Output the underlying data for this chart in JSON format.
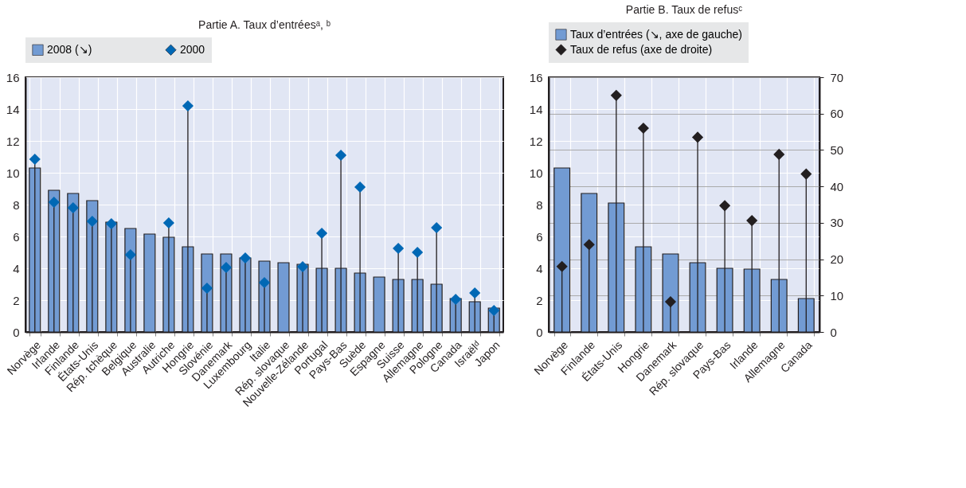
{
  "chart_data": [
    {
      "type": "bar",
      "title": "Partie A. Taux d’entréesᵃ, ᵇ",
      "legend": "top",
      "grid": true,
      "marker": "diamond",
      "categories": [
        "Norvège",
        "Irlande",
        "Finlande",
        "États-Unis",
        "Rép. tchèque",
        "Belgique",
        "Australie",
        "Autriche",
        "Hongrie",
        "Slovénie",
        "Danemark",
        "Luxembourg",
        "Italie",
        "Rép. slovaque",
        "Nouvelle-Zélande",
        "Portugal",
        "Pays-Bas",
        "Suède",
        "Espagne",
        "Suisse",
        "Allemagne",
        "Pologne",
        "Canada",
        "Israëlᵈ",
        "Japon"
      ],
      "ylim": [
        0,
        16
      ],
      "yticks": [
        0,
        2,
        4,
        6,
        8,
        10,
        12,
        14,
        16
      ],
      "series": [
        {
          "name": "2008 (↘)",
          "color": "#729bd3",
          "values": [
            10.3,
            8.9,
            8.7,
            8.25,
            6.9,
            6.5,
            6.15,
            5.95,
            5.35,
            4.9,
            4.9,
            4.65,
            4.45,
            4.35,
            4.25,
            4.0,
            4.0,
            3.7,
            3.45,
            3.3,
            3.3,
            3.0,
            2.1,
            1.9,
            1.5
          ]
        },
        {
          "name": "2000",
          "type": "lollipop",
          "color": "#0068b5",
          "values": [
            10.85,
            8.15,
            7.8,
            6.95,
            6.8,
            4.85,
            null,
            6.85,
            14.2,
            2.75,
            4.05,
            4.65,
            3.1,
            null,
            4.1,
            6.2,
            11.1,
            9.1,
            null,
            5.25,
            5.0,
            6.55,
            2.05,
            2.45,
            1.35
          ]
        }
      ]
    },
    {
      "type": "bar",
      "title": "Partie B. Taux de refusᶜ",
      "legend": "top",
      "grid": true,
      "marker": "diamond",
      "categories": [
        "Norvège",
        "Finlande",
        "États-Unis",
        "Hongrie",
        "Danemark",
        "Rép. slovaque",
        "Pays-Bas",
        "Irlande",
        "Allemagne",
        "Canada"
      ],
      "ylim": [
        0,
        16
      ],
      "yticks": [
        0,
        2,
        4,
        6,
        8,
        10,
        12,
        14,
        16
      ],
      "y2lim": [
        0,
        70
      ],
      "y2ticks": [
        0,
        10,
        20,
        30,
        40,
        50,
        60,
        70
      ],
      "series": [
        {
          "name": "Taux d’entrées (↘, axe de gauche)",
          "color": "#729bd3",
          "values": [
            10.3,
            8.7,
            8.1,
            5.35,
            4.9,
            4.35,
            4.0,
            3.95,
            3.3,
            2.1
          ]
        },
        {
          "name": "Taux de refus (axe de droite)",
          "type": "lollipop",
          "axis": "y2",
          "color": "#231f20",
          "values": [
            18,
            24,
            65,
            56,
            8.3,
            53.5,
            34.7,
            30.6,
            48.8,
            43.4
          ]
        }
      ]
    }
  ]
}
